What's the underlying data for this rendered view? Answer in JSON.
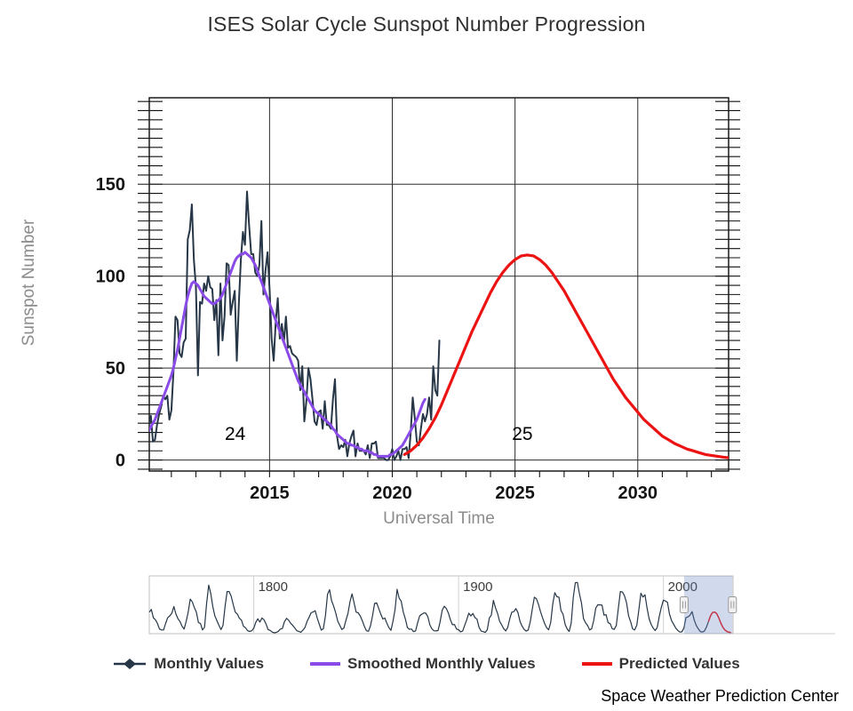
{
  "footer": {
    "credit": "Space Weather Prediction Center"
  },
  "chart_data": {
    "type": "line",
    "title": "ISES Solar Cycle Sunspot Number Progression",
    "xlabel": "Universal Time",
    "ylabel": "Sunspot Number",
    "xlim": [
      2010.1,
      2033.7
    ],
    "ylim": [
      -6,
      197
    ],
    "x_ticks": [
      2015,
      2020,
      2025,
      2030
    ],
    "y_ticks": [
      0,
      50,
      100,
      150
    ],
    "y_minor_step": 5,
    "x_minor_step": 1,
    "grid": true,
    "legend_position": "bottom",
    "annotations": [
      {
        "label": "24",
        "x": 2013.6,
        "y": 11
      },
      {
        "label": "25",
        "x": 2025.3,
        "y": 11
      }
    ],
    "series": [
      {
        "name": "Monthly Values",
        "color": "#273747",
        "width": 2,
        "marker": "diamond",
        "x_start": 2010.0,
        "x_step": 0.083333,
        "values": [
          13,
          19,
          24,
          10,
          11,
          19,
          25,
          29,
          35,
          33,
          35,
          22,
          27,
          48,
          78,
          76,
          58,
          56,
          64,
          66,
          120,
          125,
          139,
          109,
          94,
          46,
          86,
          85,
          96,
          92,
          100,
          94,
          93,
          76,
          87,
          57,
          96,
          65,
          78,
          107,
          106,
          79,
          86,
          92,
          54,
          85,
          109,
          124,
          117,
          146,
          128,
          112,
          112,
          102,
          100,
          106,
          130,
          90,
          103,
          113,
          93,
          66,
          54,
          75,
          88,
          66,
          74,
          64,
          78,
          61,
          62,
          58,
          57,
          56,
          54,
          38,
          51,
          21,
          32,
          50,
          44,
          33,
          21,
          19,
          26,
          27,
          17,
          32,
          19,
          19,
          17,
          33,
          44,
          13,
          6,
          8,
          7,
          11,
          2,
          9,
          13,
          16,
          2,
          9,
          5,
          5,
          5,
          3,
          8,
          1,
          9,
          9,
          10,
          1,
          1,
          1,
          1,
          0,
          0,
          2,
          6,
          0,
          2,
          5,
          0,
          6,
          6,
          7,
          1,
          15,
          34,
          23,
          10,
          8,
          17,
          25,
          21,
          25,
          34,
          22,
          51,
          38,
          35,
          65
        ]
      },
      {
        "name": "Smoothed Monthly Values",
        "color": "#8a4be8",
        "width": 3,
        "marker": "line",
        "x_start": 2010.0,
        "x_step": 0.083333,
        "values": [
          14,
          16,
          18,
          20,
          22,
          25,
          28,
          31,
          34,
          37,
          40,
          43,
          46,
          50,
          55,
          60,
          66,
          72,
          78,
          84,
          89,
          93,
          96,
          97,
          96,
          95,
          93,
          91,
          89,
          88,
          87,
          86,
          85,
          85,
          86,
          87,
          88,
          90,
          93,
          96,
          99,
          102,
          105,
          108,
          110,
          111,
          112,
          112,
          113,
          112,
          111,
          110,
          108,
          106,
          103,
          100,
          97,
          94,
          91,
          88,
          85,
          82,
          79,
          76,
          73,
          70,
          67,
          64,
          61,
          58,
          55,
          52,
          49,
          46,
          43,
          41,
          39,
          37,
          35,
          33,
          31,
          29,
          27,
          26,
          25,
          24,
          23,
          22,
          21,
          20,
          19,
          17,
          16,
          14,
          13,
          12,
          11,
          10,
          9,
          9,
          8,
          8,
          7,
          7,
          6,
          6,
          5,
          5,
          5,
          4,
          4,
          3,
          3,
          2,
          2,
          2,
          2,
          2,
          2,
          3,
          3,
          4,
          5,
          6,
          7,
          8,
          10,
          12,
          14,
          16,
          18,
          20,
          22,
          25,
          28,
          31,
          33
        ]
      },
      {
        "name": "Predicted Values",
        "color": "#ec1313",
        "width": 3.2,
        "marker": "line",
        "x_start": 2020.5,
        "x_step": 0.25,
        "values": [
          3,
          5,
          8,
          12,
          17,
          23,
          30,
          38,
          46,
          54,
          62,
          70,
          77,
          84,
          91,
          97,
          102,
          106,
          109,
          111,
          111.5,
          111,
          109,
          106,
          102,
          97,
          92,
          86,
          80,
          74,
          68,
          62,
          56,
          50,
          44,
          39,
          34,
          30,
          26,
          22,
          19,
          16,
          13,
          11,
          9,
          7.5,
          6,
          5,
          4,
          3,
          2.5,
          2,
          1.5,
          1.2
        ]
      }
    ],
    "navigator": {
      "xlim": [
        1749,
        2034
      ],
      "ticks": [
        1800,
        1900,
        2000
      ],
      "ymax": 280,
      "selection": [
        2010.1,
        2033.7
      ],
      "mask_color": "rgba(102,133,194,0.3)",
      "series": [
        {
          "color": "#273747",
          "width": 1.2,
          "x_start": 1749,
          "x_step": 1,
          "values": [
            110,
            125,
            80,
            70,
            50,
            20,
            15,
            15,
            50,
            80,
            90,
            105,
            140,
            100,
            75,
            60,
            35,
            20,
            60,
            110,
            180,
            165,
            135,
            110,
            55,
            50,
            15,
            30,
            155,
            255,
            210,
            140,
            90,
            65,
            40,
            17,
            40,
            140,
            220,
            220,
            195,
            150,
            110,
            100,
            78,
            68,
            35,
            27,
            11,
            7,
            11,
            24,
            56,
            75,
            57,
            79,
            70,
            47,
            17,
            13,
            4,
            0,
            2,
            8,
            20,
            23,
            59,
            77,
            68,
            51,
            40,
            26,
            11,
            7,
            3,
            14,
            28,
            60,
            82,
            107,
            111,
            118,
            79,
            46,
            14,
            22,
            92,
            205,
            230,
            171,
            142,
            107,
            62,
            40,
            18,
            25,
            66,
            103,
            166,
            208,
            160,
            110,
            107,
            90,
            65,
            34,
            11,
            8,
            38,
            92,
            157,
            160,
            130,
            100,
            74,
            79,
            51,
            27,
            13,
            62,
            124,
            232,
            185,
            169,
            110,
            74,
            28,
            19,
            20,
            6,
            10,
            53,
            90,
            99,
            106,
            105,
            86,
            42,
            21,
            11,
            10,
            12,
            59,
            121,
            142,
            130,
            106,
            70,
            43,
            44,
            20,
            16,
            5,
            9,
            40,
            70,
            105,
            90,
            103,
            81,
            73,
            30,
            9,
            6,
            2,
            16,
            79,
            95,
            173,
            134,
            105,
            62,
            43,
            23,
            10,
            28,
            75,
            110,
            113,
            129,
            108,
            60,
            35,
            18,
            9,
            15,
            60,
            127,
            190,
            182,
            152,
            113,
            80,
            50,
            27,
            16,
            55,
            154,
            214,
            193,
            190,
            118,
            99,
            45,
            20,
            7,
            53,
            190,
            267,
            269,
            209,
            159,
            76,
            53,
            39,
            15,
            22,
            66,
            132,
            150,
            149,
            148,
            94,
            97,
            54,
            49,
            22,
            18,
            39,
            131,
            220,
            218,
            198,
            162,
            91,
            60,
            21,
            15,
            41,
            123,
            211,
            191,
            203,
            133,
            76,
            45,
            25,
            12,
            29,
            88,
            136,
            174,
            170,
            163,
            99,
            65,
            46,
            25,
            13,
            4,
            5,
            25,
            81,
            85,
            94,
            113,
            70,
            40,
            22,
            7,
            4,
            9,
            30,
            60
          ]
        },
        {
          "color": "#ec1313",
          "width": 1.5,
          "x_start": 2022,
          "x_step": 1,
          "values": [
            60,
            90,
            108,
            111,
            102,
            80,
            52,
            30,
            15,
            7,
            3,
            1
          ]
        }
      ]
    }
  }
}
